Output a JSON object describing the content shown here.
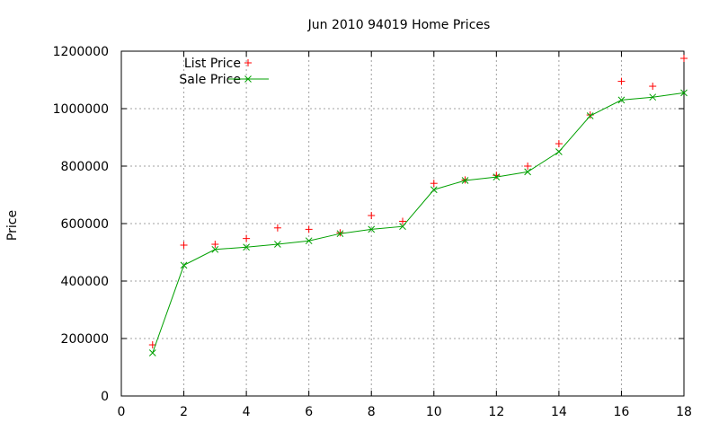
{
  "chart_data": {
    "type": "line",
    "title": "Jun 2010 94019 Home Prices",
    "xlabel": "",
    "ylabel": "Price",
    "xlim": [
      0,
      18
    ],
    "ylim": [
      0,
      1200000
    ],
    "xticks": [
      0,
      2,
      4,
      6,
      8,
      10,
      12,
      14,
      16,
      18
    ],
    "yticks": [
      0,
      200000,
      400000,
      600000,
      800000,
      1000000,
      1200000
    ],
    "grid": true,
    "legend_position": "top-left",
    "series": [
      {
        "name": "List Price",
        "style": "points",
        "marker": "+",
        "color": "#ff0000",
        "x": [
          1,
          2,
          3,
          4,
          5,
          6,
          7,
          8,
          9,
          10,
          11,
          12,
          13,
          14,
          15,
          16,
          17,
          18
        ],
        "y": [
          178000,
          525000,
          528000,
          548000,
          585000,
          580000,
          568000,
          628000,
          608000,
          740000,
          752000,
          768000,
          800000,
          878000,
          978000,
          1095000,
          1078000,
          1175000
        ]
      },
      {
        "name": "Sale Price",
        "style": "linespoints",
        "marker": "x",
        "color": "#00a000",
        "x": [
          1,
          2,
          3,
          4,
          5,
          6,
          7,
          8,
          9,
          10,
          11,
          12,
          13,
          14,
          15,
          16,
          17,
          18
        ],
        "y": [
          150000,
          455000,
          510000,
          518000,
          528000,
          540000,
          565000,
          580000,
          590000,
          718000,
          750000,
          762000,
          780000,
          850000,
          975000,
          1030000,
          1040000,
          1055000
        ]
      }
    ]
  }
}
